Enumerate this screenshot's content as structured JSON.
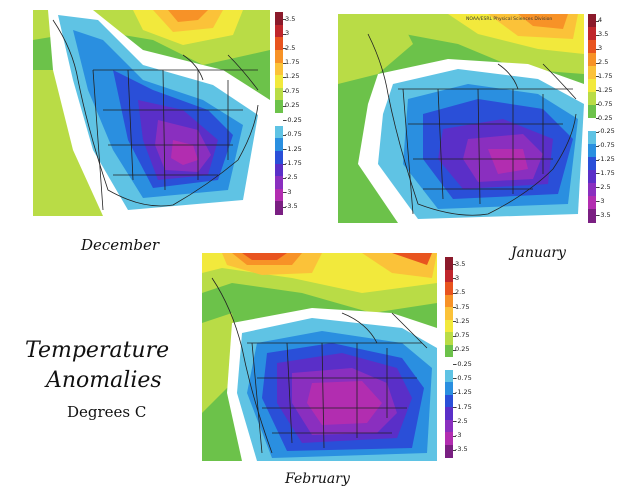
{
  "title_line1": "Temperature",
  "title_line2": "Anomalies",
  "units": "Degrees C",
  "credit": "NOAA/ESRL Physical Sciences Division",
  "maps": [
    {
      "id": "december",
      "label": "December",
      "colorbar_ticks": [
        "3.5",
        "3",
        "2.5",
        "1.75",
        "1.25",
        "0.75",
        "0.25",
        "-0.25",
        "-0.75",
        "-1.25",
        "-1.75",
        "-2.5",
        "-3",
        "-3.5"
      ]
    },
    {
      "id": "january",
      "label": "January",
      "colorbar_ticks": [
        "4",
        "3.5",
        "3",
        "2.5",
        "1.75",
        "1.25",
        "0.75",
        "0.25",
        "-0.25",
        "-0.75",
        "-1.25",
        "-1.75",
        "-2.5",
        "-3",
        "-3.5"
      ]
    },
    {
      "id": "february",
      "label": "February",
      "colorbar_ticks": [
        "3.5",
        "3",
        "2.5",
        "1.75",
        "1.25",
        "0.75",
        "0.25",
        "-0.25",
        "-0.75",
        "-1.25",
        "-1.75",
        "-2.5",
        "-3",
        "-3.5"
      ]
    }
  ],
  "colors": [
    "#8b1a2b",
    "#c0262c",
    "#e8541f",
    "#f79227",
    "#fbc239",
    "#f2e93c",
    "#b9dc46",
    "#6cc24a",
    "#ffffff",
    "#5fc3e4",
    "#2a8fe0",
    "#2a4fd8",
    "#5a2fc8",
    "#8a2fbf",
    "#b22db0",
    "#7a1f82"
  ]
}
